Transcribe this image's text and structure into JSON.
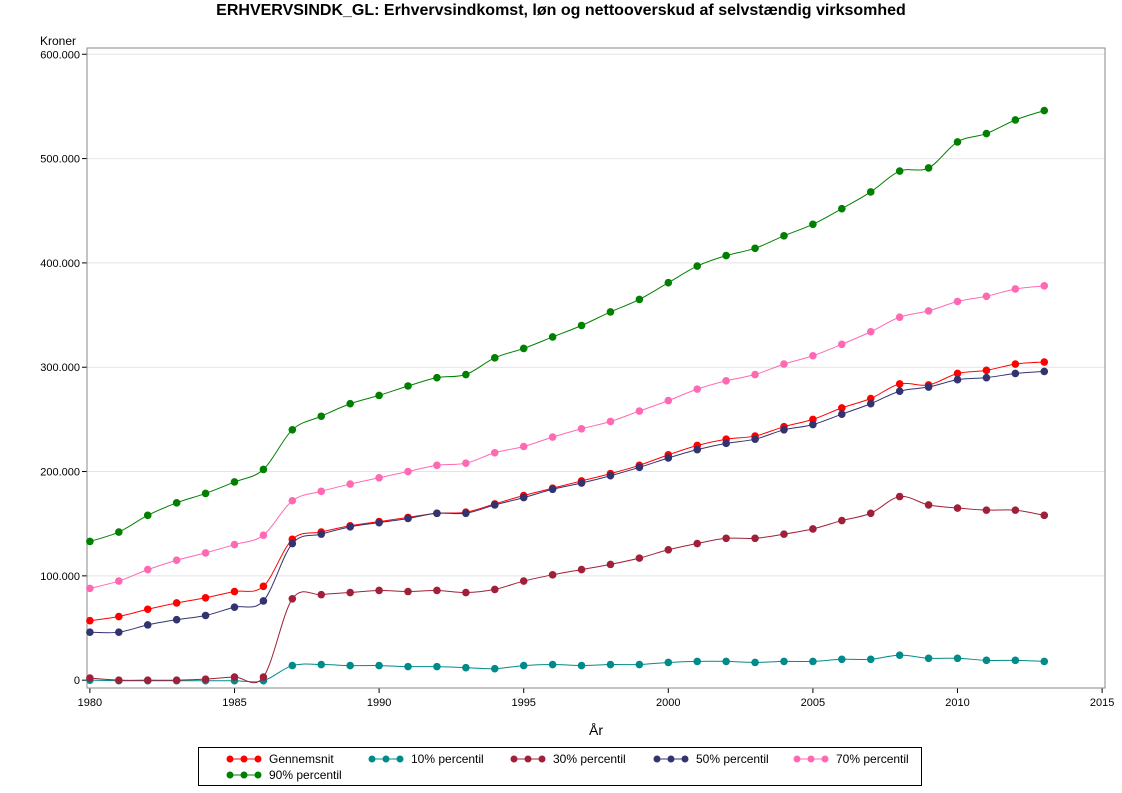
{
  "chart_data": {
    "type": "line",
    "title": "ERHVERVSINDK_GL:  Erhvervsindkomst, løn og nettooverskud af selvstændig virksomhed",
    "xlabel": "År",
    "ylabel": "Kroner",
    "xlim": [
      1979.9,
      2015.1
    ],
    "ylim": [
      -7500,
      606000
    ],
    "xticks": [
      1980,
      1985,
      1990,
      1995,
      2000,
      2005,
      2010,
      2015
    ],
    "yticks": [
      0,
      100000,
      200000,
      300000,
      400000,
      500000,
      600000
    ],
    "ytick_labels": [
      "0",
      "100.000",
      "200.000",
      "300.000",
      "400.000",
      "500.000",
      "600.000"
    ],
    "grid": "horizontal",
    "legend_position": "bottom",
    "x": [
      1980,
      1981,
      1982,
      1983,
      1984,
      1985,
      1986,
      1987,
      1988,
      1989,
      1990,
      1991,
      1992,
      1993,
      1994,
      1995,
      1996,
      1997,
      1998,
      1999,
      2000,
      2001,
      2002,
      2003,
      2004,
      2005,
      2006,
      2007,
      2008,
      2009,
      2010,
      2011,
      2012,
      2013
    ],
    "series": [
      {
        "name": "Gennemsnit",
        "color": "#ff0000",
        "values": [
          57000,
          61000,
          68000,
          74000,
          79000,
          85000,
          90000,
          135000,
          142000,
          148000,
          152000,
          156000,
          160000,
          161000,
          169000,
          177000,
          184000,
          191000,
          198000,
          206000,
          216000,
          225000,
          231000,
          234000,
          243000,
          250000,
          261000,
          270000,
          284000,
          283000,
          294000,
          297000,
          303000,
          305000
        ]
      },
      {
        "name": "10% percentil",
        "color": "#008b8b",
        "values": [
          0,
          -500,
          -500,
          -500,
          -500,
          -500,
          -500,
          14000,
          15000,
          14000,
          14000,
          13000,
          13000,
          12000,
          11000,
          14000,
          15000,
          14000,
          15000,
          15000,
          17000,
          18000,
          18000,
          17000,
          18000,
          18000,
          20000,
          20000,
          24000,
          21000,
          21000,
          19000,
          19000,
          18000
        ]
      },
      {
        "name": "30% percentil",
        "color": "#a0203a",
        "values": [
          2000,
          0,
          0,
          0,
          1000,
          3000,
          3000,
          78000,
          82000,
          84000,
          86000,
          85000,
          86000,
          84000,
          87000,
          95000,
          101000,
          106000,
          111000,
          117000,
          125000,
          131000,
          136000,
          136000,
          140000,
          145000,
          153000,
          160000,
          176000,
          168000,
          165000,
          163000,
          163000,
          158000
        ]
      },
      {
        "name": "50% percentil",
        "color": "#333370",
        "values": [
          46000,
          46000,
          53000,
          58000,
          62000,
          70000,
          76000,
          131000,
          140000,
          147000,
          151000,
          155000,
          160000,
          160000,
          168000,
          175000,
          183000,
          189000,
          196000,
          204000,
          213000,
          221000,
          227000,
          231000,
          240000,
          245000,
          255000,
          265000,
          277000,
          281000,
          288000,
          290000,
          294000,
          296000
        ]
      },
      {
        "name": "70% percentil",
        "color": "#ff69b4",
        "values": [
          88000,
          95000,
          106000,
          115000,
          122000,
          130000,
          139000,
          172000,
          181000,
          188000,
          194000,
          200000,
          206000,
          208000,
          218000,
          224000,
          233000,
          241000,
          248000,
          258000,
          268000,
          279000,
          287000,
          293000,
          303000,
          311000,
          322000,
          334000,
          348000,
          354000,
          363000,
          368000,
          375000,
          378000
        ]
      },
      {
        "name": "90% percentil",
        "color": "#008000",
        "values": [
          133000,
          142000,
          158000,
          170000,
          179000,
          190000,
          202000,
          240000,
          253000,
          265000,
          273000,
          282000,
          290000,
          293000,
          309000,
          318000,
          329000,
          340000,
          353000,
          365000,
          381000,
          397000,
          407000,
          414000,
          426000,
          437000,
          452000,
          468000,
          488000,
          491000,
          516000,
          524000,
          537000,
          546000
        ]
      }
    ]
  }
}
